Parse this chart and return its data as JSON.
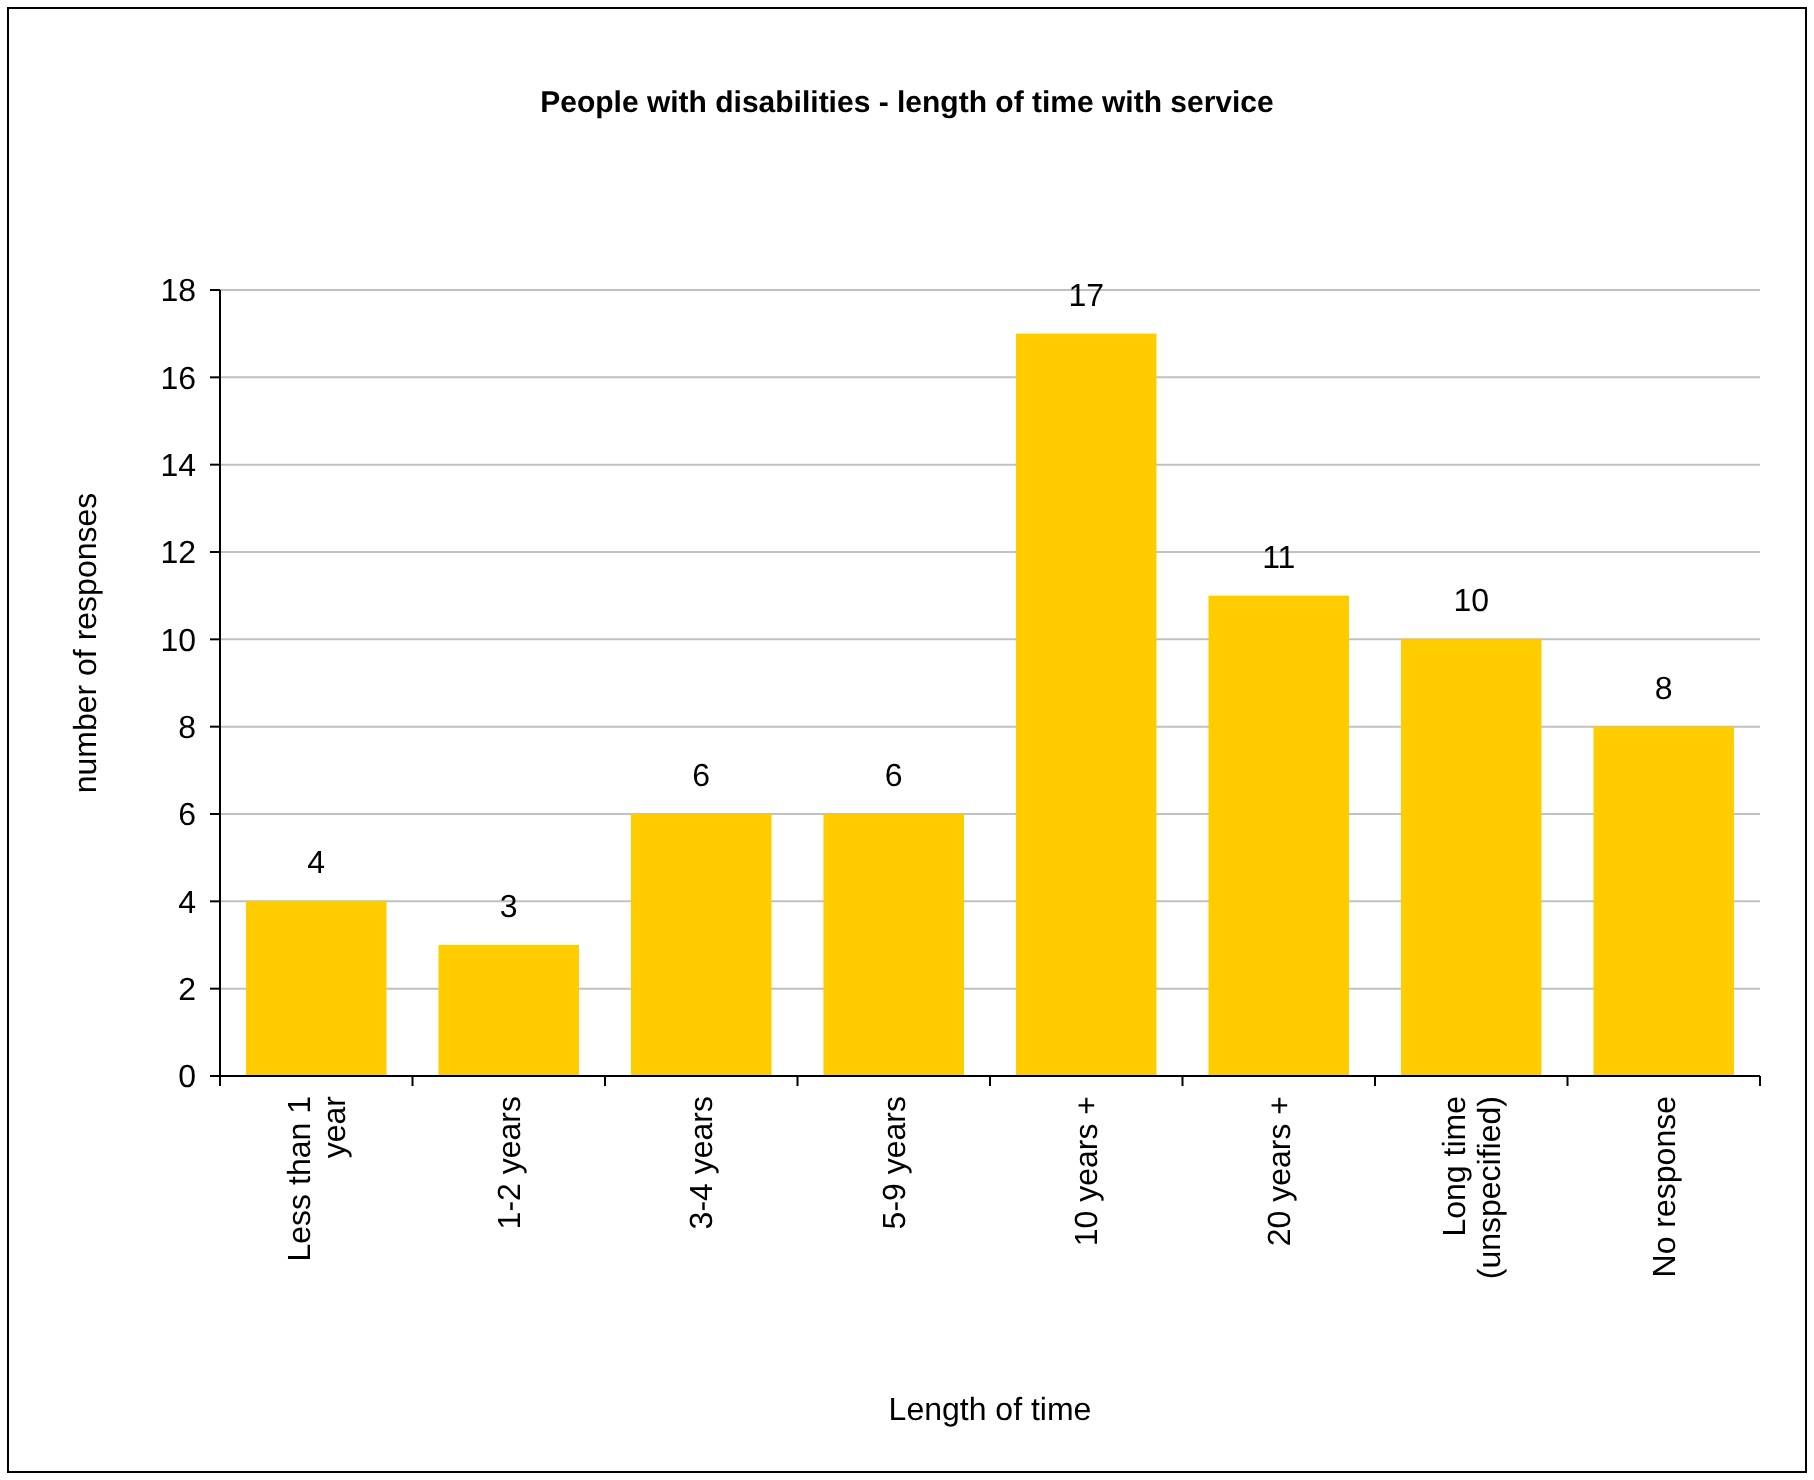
{
  "chart_data": {
    "type": "bar",
    "title": "People with disabilities - length of time with service",
    "xlabel": "Length of time",
    "ylabel": "number of responses",
    "categories": [
      "Less than 1 year",
      "1-2 years",
      "3-4 years",
      "5-9 years",
      "10 years +",
      "20 years +",
      "Long time (unspecified)",
      "No response"
    ],
    "values": [
      4,
      3,
      6,
      6,
      17,
      11,
      10,
      8
    ],
    "color": "#ffcc00",
    "ylim": [
      0,
      18
    ],
    "yticks": [
      0,
      2,
      4,
      6,
      8,
      10,
      12,
      14,
      16,
      18
    ],
    "grid": "y",
    "data_labels": true
  }
}
